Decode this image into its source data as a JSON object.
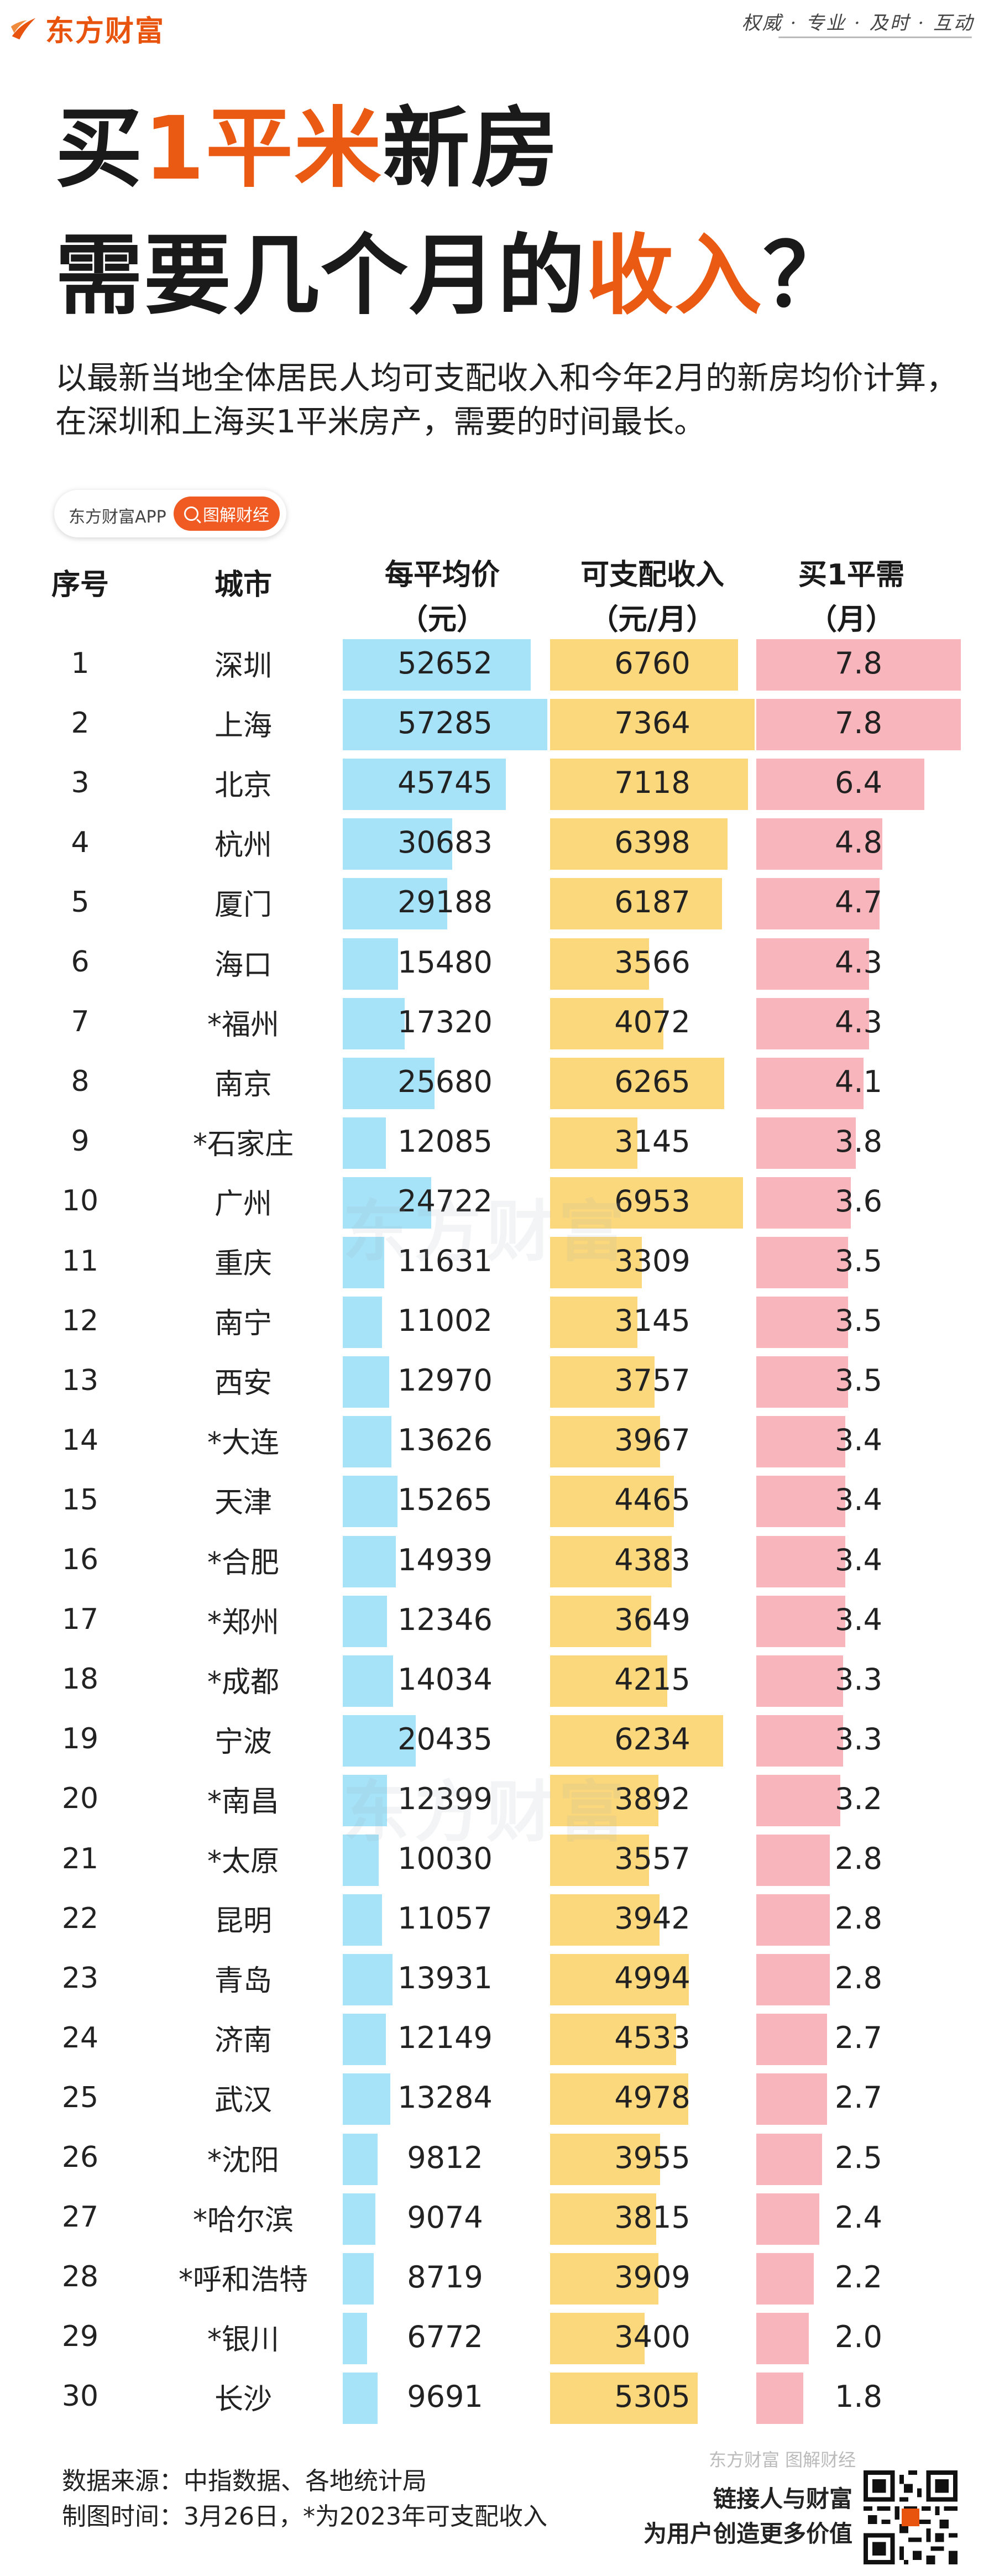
{
  "brand": {
    "name": "东方财富",
    "slogan": "权威 · 专业 · 及时 · 互动"
  },
  "title": {
    "line1_a": "买",
    "line1_b": "1平米",
    "line1_c": "新房",
    "line2_a": "需要几个月的",
    "line2_b": "收入",
    "line2_c": "？"
  },
  "subtitle": "以最新当地全体居民人均可支配收入和今年2月的新房均价计算，在深圳和上海买1平米房产，需要的时间最长。",
  "app_pill": {
    "app_name": "东方财富APP",
    "button_label": "图解财经"
  },
  "colors": {
    "accent": "#ea5a12",
    "price_bar": "#a6e3f9",
    "income_bar": "#fcd87c",
    "months_bar": "#f9b5bc"
  },
  "table_headers": {
    "idx": "序号",
    "city": "城市",
    "price_1": "每平均价",
    "price_2": "（元）",
    "income_1": "可支配收入",
    "income_2": "（元/月）",
    "months_1": "买1平需",
    "months_2": "（月）"
  },
  "chart_data": {
    "type": "table",
    "columns": [
      "序号",
      "城市",
      "每平均价（元）",
      "可支配收入（元/月）",
      "买1平需（月）"
    ],
    "rows": [
      {
        "idx": "1",
        "city": "深圳",
        "price": 52652,
        "income": 6760,
        "months": "7.8"
      },
      {
        "idx": "2",
        "city": "上海",
        "price": 57285,
        "income": 7364,
        "months": "7.8"
      },
      {
        "idx": "3",
        "city": "北京",
        "price": 45745,
        "income": 7118,
        "months": "6.4"
      },
      {
        "idx": "4",
        "city": "杭州",
        "price": 30683,
        "income": 6398,
        "months": "4.8"
      },
      {
        "idx": "5",
        "city": "厦门",
        "price": 29188,
        "income": 6187,
        "months": "4.7"
      },
      {
        "idx": "6",
        "city": "海口",
        "price": 15480,
        "income": 3566,
        "months": "4.3"
      },
      {
        "idx": "7",
        "city": "*福州",
        "price": 17320,
        "income": 4072,
        "months": "4.3"
      },
      {
        "idx": "8",
        "city": "南京",
        "price": 25680,
        "income": 6265,
        "months": "4.1"
      },
      {
        "idx": "9",
        "city": "*石家庄",
        "price": 12085,
        "income": 3145,
        "months": "3.8"
      },
      {
        "idx": "10",
        "city": "广州",
        "price": 24722,
        "income": 6953,
        "months": "3.6"
      },
      {
        "idx": "11",
        "city": "重庆",
        "price": 11631,
        "income": 3309,
        "months": "3.5"
      },
      {
        "idx": "12",
        "city": "南宁",
        "price": 11002,
        "income": 3145,
        "months": "3.5"
      },
      {
        "idx": "13",
        "city": "西安",
        "price": 12970,
        "income": 3757,
        "months": "3.5"
      },
      {
        "idx": "14",
        "city": "*大连",
        "price": 13626,
        "income": 3967,
        "months": "3.4"
      },
      {
        "idx": "15",
        "city": "天津",
        "price": 15265,
        "income": 4465,
        "months": "3.4"
      },
      {
        "idx": "16",
        "city": "*合肥",
        "price": 14939,
        "income": 4383,
        "months": "3.4"
      },
      {
        "idx": "17",
        "city": "*郑州",
        "price": 12346,
        "income": 3649,
        "months": "3.4"
      },
      {
        "idx": "18",
        "city": "*成都",
        "price": 14034,
        "income": 4215,
        "months": "3.3"
      },
      {
        "idx": "19",
        "city": "宁波",
        "price": 20435,
        "income": 6234,
        "months": "3.3"
      },
      {
        "idx": "20",
        "city": "*南昌",
        "price": 12399,
        "income": 3892,
        "months": "3.2"
      },
      {
        "idx": "21",
        "city": "*太原",
        "price": 10030,
        "income": 3557,
        "months": "2.8"
      },
      {
        "idx": "22",
        "city": "昆明",
        "price": 11057,
        "income": 3942,
        "months": "2.8"
      },
      {
        "idx": "23",
        "city": "青岛",
        "price": 13931,
        "income": 4994,
        "months": "2.8"
      },
      {
        "idx": "24",
        "city": "济南",
        "price": 12149,
        "income": 4533,
        "months": "2.7"
      },
      {
        "idx": "25",
        "city": "武汉",
        "price": 13284,
        "income": 4978,
        "months": "2.7"
      },
      {
        "idx": "26",
        "city": "*沈阳",
        "price": 9812,
        "income": 3955,
        "months": "2.5"
      },
      {
        "idx": "27",
        "city": "*哈尔滨",
        "price": 9074,
        "income": 3815,
        "months": "2.4"
      },
      {
        "idx": "28",
        "city": "*呼和浩特",
        "price": 8719,
        "income": 3909,
        "months": "2.2"
      },
      {
        "idx": "29",
        "city": "*银川",
        "price": 6772,
        "income": 3400,
        "months": "2.0"
      },
      {
        "idx": "30",
        "city": "长沙",
        "price": 9691,
        "income": 5305,
        "months": "1.8"
      }
    ]
  },
  "watermarks": [
    "东方财富",
    "东方财富"
  ],
  "footer": {
    "source": "数据来源：中指数据、各地统计局",
    "date": "制图时间：3月26日，*为2023年可支配收入",
    "brand_watermark": "东方财富 图解财经",
    "tagline_1": "链接人与财富",
    "tagline_2": "为用户创造更多价值"
  }
}
